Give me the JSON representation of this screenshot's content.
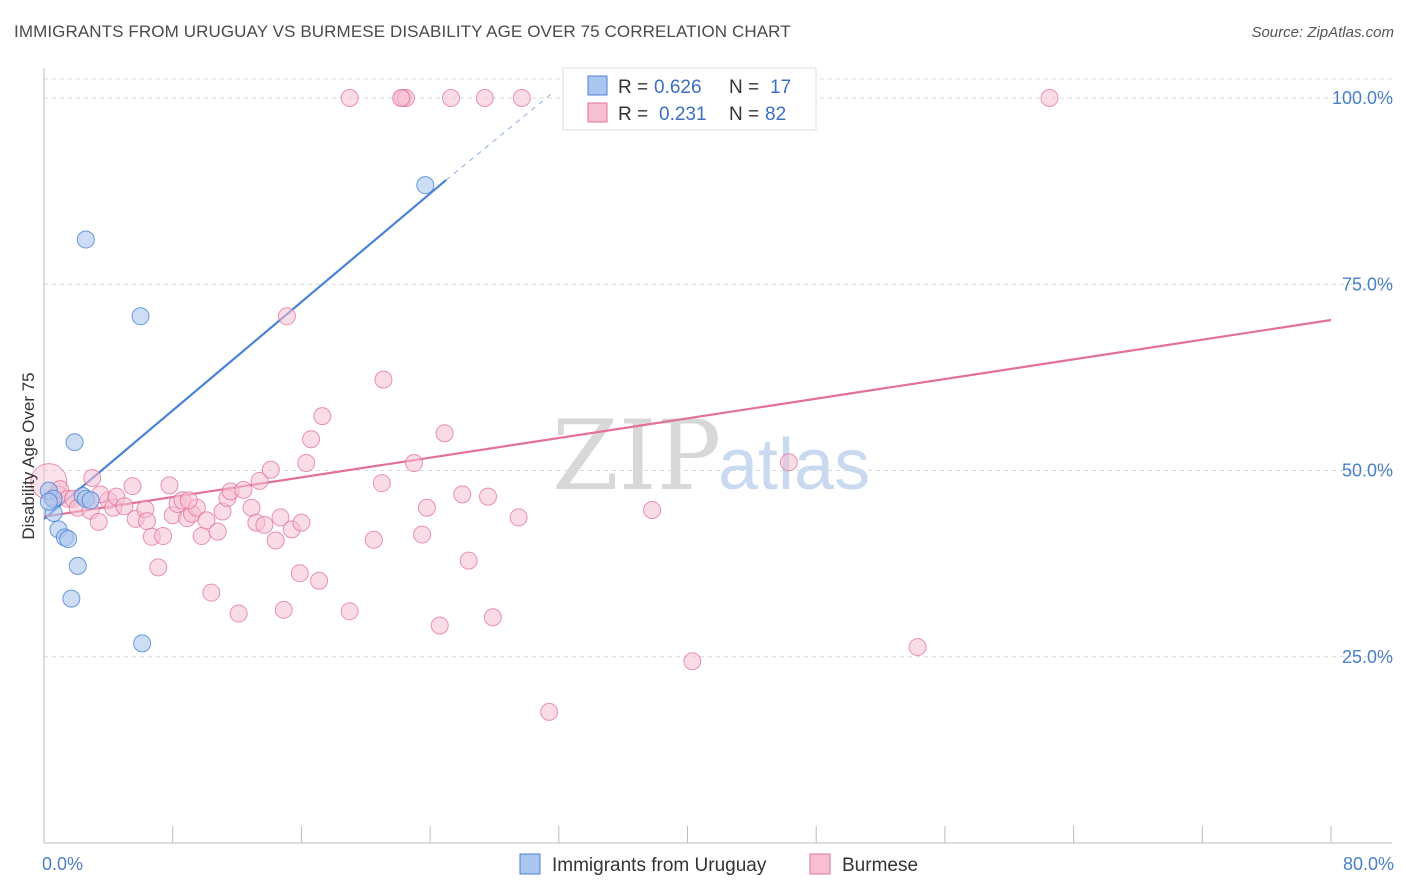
{
  "header": {
    "title": "IMMIGRANTS FROM URUGUAY VS BURMESE DISABILITY AGE OVER 75 CORRELATION CHART",
    "source": "Source: ZipAtlas.com"
  },
  "watermark": {
    "zip": "ZIP",
    "atlas": "atlas"
  },
  "legend": {
    "r_label": "R =",
    "n_label": "N =",
    "series1": {
      "r": "0.626",
      "n": "17"
    },
    "series2": {
      "r": "0.231",
      "n": "82"
    }
  },
  "chart_data": {
    "type": "scatter",
    "title": "IMMIGRANTS FROM URUGUAY VS BURMESE DISABILITY AGE OVER 75 CORRELATION CHART",
    "xlabel": "",
    "ylabel": "Disability Age Over 75",
    "xlim": [
      0,
      80
    ],
    "ylim": [
      0,
      103
    ],
    "x_tick_labels": [
      "0.0%",
      "80.0%"
    ],
    "y_ticks": [
      25,
      50,
      75,
      100
    ],
    "y_tick_labels": [
      "25.0%",
      "50.0%",
      "75.0%",
      "100.0%"
    ],
    "grid": true,
    "colors": {
      "series1": "#4a82d4",
      "series1_fill": "#aac6ef",
      "series2": "#e2709a",
      "series2_fill": "#f6bfd2"
    },
    "series": [
      {
        "name": "Immigrants from Uruguay",
        "r": 0.626,
        "n": 17,
        "trend": {
          "x0": 0,
          "y0": 43.5,
          "x1": 25,
          "y1": 89,
          "dash_to_x": 31.5,
          "dash_to_y": 100.5
        },
        "points": [
          [
            0.3,
            47.3
          ],
          [
            0.6,
            44.3
          ],
          [
            0.6,
            46.2
          ],
          [
            0.9,
            42.1
          ],
          [
            1.3,
            41.0
          ],
          [
            1.5,
            40.8
          ],
          [
            1.7,
            32.8
          ],
          [
            1.9,
            53.8
          ],
          [
            2.1,
            37.2
          ],
          [
            2.4,
            46.6
          ],
          [
            2.6,
            46.2
          ],
          [
            2.6,
            81.0
          ],
          [
            2.9,
            46.0
          ],
          [
            6.0,
            70.7
          ],
          [
            6.1,
            26.8
          ],
          [
            23.7,
            88.3
          ],
          [
            0.3,
            45.8
          ]
        ]
      },
      {
        "name": "Burmese",
        "r": 0.231,
        "n": 82,
        "trend": {
          "x0": 0,
          "y0": 43.8,
          "x1": 80,
          "y1": 70.2
        },
        "points": [
          [
            0.3,
            48.5
          ],
          [
            0.5,
            46.3
          ],
          [
            0.9,
            46.8
          ],
          [
            1.0,
            47.5
          ],
          [
            1.5,
            46.2
          ],
          [
            1.8,
            46.2
          ],
          [
            2.1,
            45.0
          ],
          [
            2.9,
            44.6
          ],
          [
            3.0,
            49.0
          ],
          [
            3.4,
            43.1
          ],
          [
            4.0,
            46.0
          ],
          [
            4.3,
            45.0
          ],
          [
            4.5,
            46.5
          ],
          [
            5.0,
            45.2
          ],
          [
            5.5,
            47.9
          ],
          [
            5.7,
            43.5
          ],
          [
            6.3,
            44.8
          ],
          [
            6.4,
            43.2
          ],
          [
            6.7,
            41.1
          ],
          [
            7.1,
            37.0
          ],
          [
            7.4,
            41.2
          ],
          [
            7.8,
            48.0
          ],
          [
            8.0,
            44.0
          ],
          [
            8.3,
            45.5
          ],
          [
            8.6,
            46.0
          ],
          [
            8.9,
            43.6
          ],
          [
            9.2,
            44.2
          ],
          [
            9.5,
            45.0
          ],
          [
            9.8,
            41.2
          ],
          [
            10.1,
            43.3
          ],
          [
            10.4,
            33.6
          ],
          [
            10.8,
            41.8
          ],
          [
            11.1,
            44.5
          ],
          [
            11.4,
            46.3
          ],
          [
            11.6,
            47.2
          ],
          [
            12.1,
            30.8
          ],
          [
            12.4,
            47.4
          ],
          [
            12.9,
            45.0
          ],
          [
            13.2,
            43.0
          ],
          [
            13.4,
            48.6
          ],
          [
            13.7,
            42.7
          ],
          [
            14.1,
            50.1
          ],
          [
            14.4,
            40.6
          ],
          [
            14.7,
            43.7
          ],
          [
            14.9,
            31.3
          ],
          [
            15.4,
            42.1
          ],
          [
            15.1,
            70.7
          ],
          [
            15.9,
            36.2
          ],
          [
            16.3,
            51.0
          ],
          [
            16.6,
            54.2
          ],
          [
            17.1,
            35.2
          ],
          [
            17.3,
            57.3
          ],
          [
            19.0,
            31.1
          ],
          [
            19.0,
            100.0
          ],
          [
            20.5,
            40.7
          ],
          [
            21.0,
            48.3
          ],
          [
            21.1,
            62.2
          ],
          [
            22.3,
            100.0
          ],
          [
            22.5,
            100.0
          ],
          [
            23.0,
            51.0
          ],
          [
            23.5,
            41.4
          ],
          [
            23.8,
            45.0
          ],
          [
            24.6,
            29.2
          ],
          [
            24.9,
            55.0
          ],
          [
            25.3,
            100.0
          ],
          [
            26.0,
            46.8
          ],
          [
            26.4,
            37.9
          ],
          [
            27.4,
            100.0
          ],
          [
            27.6,
            46.5
          ],
          [
            27.9,
            30.3
          ],
          [
            29.5,
            43.7
          ],
          [
            29.7,
            100.0
          ],
          [
            31.4,
            17.6
          ],
          [
            37.8,
            44.7
          ],
          [
            40.3,
            24.4
          ],
          [
            46.3,
            51.1
          ],
          [
            54.3,
            26.3
          ],
          [
            62.5,
            100.0
          ],
          [
            22.2,
            100.0
          ],
          [
            16.0,
            43.0
          ],
          [
            9.0,
            46.0
          ],
          [
            3.5,
            46.8
          ]
        ]
      }
    ]
  }
}
